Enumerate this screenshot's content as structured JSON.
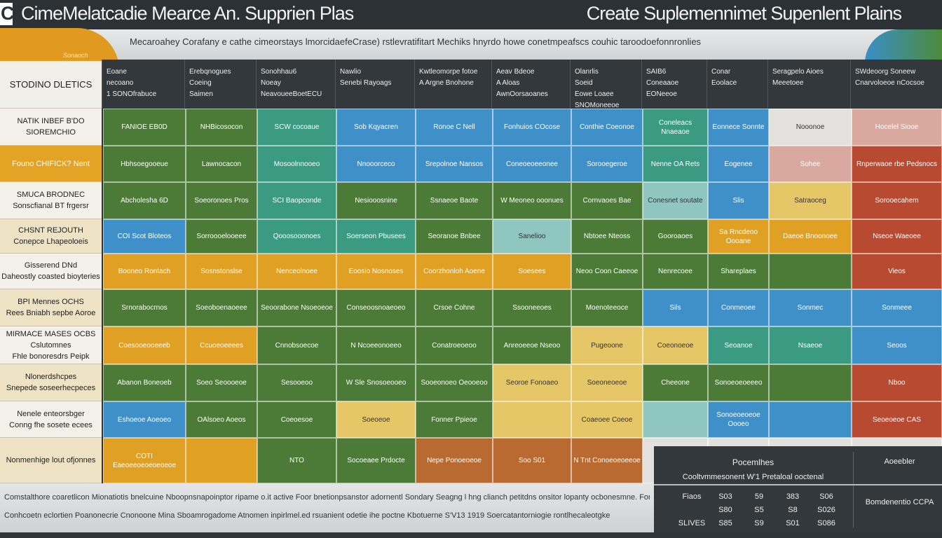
{
  "title": {
    "left_letter": "C",
    "left": "CimeMelatcadie Mearce An. Supprien Plas",
    "right": "Create Suplemennimet Supenlent Plains"
  },
  "banner": {
    "text": "Mecaroahey Corafany e cathe cimeorstays lmorcidaefeCrase) rstlevratifitart Mechiks hnyrdo howe conetmpeafscs couhic taroodoefonnronlies",
    "swoosh_label": "Sonaoch"
  },
  "header": {
    "cells": [
      "Eoane\nnecoano\n1 SONOfrabuce",
      "Erebqnogues\nCoeing\nSaimen",
      "Sonohhau6\nNoeay\nNeavoueeBoetECU",
      "Nawlio\nSenebi Rayoags",
      "Kwtleomorpe fotoe\nA Argne Bnohone",
      "Aeav Bdeoe\nA Aloas\nAwnOorsaoanes",
      "Olanrlis\nSoeid\nEowe Loaee\nSNOMoneeoe",
      "SAIB6\nConeaaoe\nEONeeoe",
      "Conar\nEoolace",
      "Seragpelo Aioes\nMeeetoee",
      "SWdeoorg Soneew\nCnarvoloeoe nCocsoe"
    ]
  },
  "left_column": {
    "header": "STODINO DLETICS",
    "rows": [
      "NATIK INBEF B'DO\nSIOREMCHIO",
      "Founo CHIFICK? Nent",
      "SMUCA BRODNEC\nSonscfianal BT frgersr",
      "CHSNT REJOUTH\nConepce Lhapeoloeis",
      "Gisserend DNd\nDaheostly coasted bioyteries",
      "BPI Mennes OCHS\nRees Bniabh sepbe Aoroe",
      "MIRMACE MASES OCBS\nCslutomnes\nFhle bonoresdrs Peipk",
      "Nlonerdshcpes\nSnepede soseerhecpeces",
      "Nenele enteorsbger\nConng fhe sosete ecees",
      "Nonmenhige lout ofjonnes"
    ]
  },
  "grid": {
    "colors": {
      "G": "#4b7b36",
      "T": "#3a9a82",
      "B": "#3f8fc9",
      "O": "#dfa024",
      "Y": "#e6c768",
      "R": "#b84a31",
      "N": "#b96a31",
      "L": "#8fc6c0",
      "P": "#d9a9a0",
      "K": "#e3e1dd"
    },
    "rows": [
      {
        "colors": [
          "G",
          "G",
          "T",
          "B",
          "B",
          "B",
          "B",
          "T",
          "B",
          "K",
          "P"
        ],
        "texts": [
          "FANIOE EB0D",
          "NHBicosocon",
          "SCW cocoaue",
          "Sob Kqyacren",
          "Ronoe C Nell",
          "Fonhuios COcose",
          "Conthie Coeonoe",
          "Coneleacs Nnaeaoe",
          "Eonnece Sonnte",
          "Nooonoe",
          "Hocelel Siooe"
        ]
      },
      {
        "colors": [
          "G",
          "G",
          "T",
          "B",
          "B",
          "B",
          "B",
          "T",
          "B",
          "P",
          "R"
        ],
        "texts": [
          "Hbhsoegooeue",
          "Lawnocacon",
          "Mosoolnnooeo",
          "Nnooorceco",
          "Srepolnoe Nansos",
          "Coneoeoeeonee",
          "Sorooegeroe",
          "Nenne OA Rets",
          "Eogenee",
          "Sohee",
          "Rnperwaoe rbe Pedsnocs"
        ]
      },
      {
        "colors": [
          "G",
          "G",
          "T",
          "G",
          "G",
          "G",
          "G",
          "L",
          "B",
          "Y",
          "R"
        ],
        "texts": [
          "Abcholesha 6D",
          "Soeoronoes Pros",
          "SCI Baopconde",
          "Nesiooosnine",
          "Ssnaeoe Baote",
          "W Meoneo ooonues",
          "Cornvaoes Bae",
          "Conesnet soutate",
          "Slis",
          "Satraoceg",
          "Sorooecahem"
        ]
      },
      {
        "colors": [
          "B",
          "G",
          "T",
          "T",
          "G",
          "L",
          "G",
          "G",
          "O",
          "O",
          "R"
        ],
        "texts": [
          "COI Scot Bloteos",
          "Sorroooelooeee",
          "Qooosooonoes",
          "Soerseon Pbusees",
          "Seoranoe Bnbee",
          "Sanelioo",
          "Nbtoee Nteoss",
          "Gooroaoes",
          "Sa Rncdeoo Oooane",
          "Daeoe Bnoonoee",
          "Nseoe Waeoee"
        ]
      },
      {
        "colors": [
          "O",
          "O",
          "O",
          "O",
          "O",
          "O",
          "G",
          "G",
          "G",
          "G",
          "R"
        ],
        "texts": [
          "Booneo Rontach",
          "Sosnstonslse",
          "Nenceolnoee",
          "Eoosio Nosnoses",
          "Coorzhonloh Aoene",
          "Soesees",
          "Neoo Coon Caeeoe",
          "Nenrecoee",
          "Shareplaes",
          "",
          "Vieos"
        ]
      },
      {
        "colors": [
          "G",
          "G",
          "G",
          "G",
          "G",
          "G",
          "G",
          "B",
          "B",
          "B",
          "B"
        ],
        "texts": [
          "Srnorabocrnos",
          "Soeoboenaoeee",
          "Seoorabone Nsoeoeoe",
          "Conseoosnoaeoeo",
          "Crsoe Cohne",
          "Ssooneeoes",
          "Moenoteeoce",
          "Sils",
          "Conmeoee",
          "Sonmec",
          "Sonmeee"
        ]
      },
      {
        "colors": [
          "O",
          "O",
          "G",
          "G",
          "G",
          "G",
          "Y",
          "Y",
          "T",
          "T",
          "B"
        ],
        "texts": [
          "Coesooeooeeeb",
          "Ccuoeoeeees",
          "Cnnobsoecoe",
          "N Ncoeeonoeeo",
          "Conatroeoeoo",
          "Anreoeeoe Nseoo",
          "Pugeoone",
          "Coeonoeoe",
          "Seoanoe",
          "Nsaeoe",
          "Seoos"
        ]
      },
      {
        "colors": [
          "G",
          "G",
          "G",
          "G",
          "G",
          "Y",
          "Y",
          "G",
          "G",
          "G",
          "R"
        ],
        "texts": [
          "Abanon Boneoeb",
          "Soeo Seoooeoe",
          "Sesooeoo",
          "W Sle Snosoeooeo",
          "Sooeonoeo Oeooeoo",
          "Seoroe Fonoaeo",
          "Soeoneoeoe",
          "Cheeone",
          "Sonoeoeoeeeo",
          "",
          "Nboo"
        ]
      },
      {
        "colors": [
          "B",
          "G",
          "G",
          "Y",
          "G",
          "Y",
          "Y",
          "L",
          "B",
          "B",
          "R"
        ],
        "texts": [
          "Eshoeoe Aoeoeo",
          "OAlsoeo Aoeos",
          "Coeoesoe",
          "Soeoeoe",
          "Fonner Ppieoe",
          "",
          "Coaeoee Coeoe",
          "",
          "Sonoeoeoeoe Oooeo",
          "",
          "Seoeoeoe CAS"
        ]
      },
      {
        "colors": [
          "O",
          "O",
          "G",
          "G",
          "N",
          "N",
          "N",
          "K",
          "K",
          "K",
          "K"
        ],
        "texts": [
          "COTI Eaeoeeoeoeoeoeoe",
          "",
          "NTO",
          "Socoeaee Prdocte",
          "Nepe Ponoeoeoe",
          "Soo  S01",
          "N Tnt Conoeoeoeeoe",
          "",
          "",
          "",
          ""
        ]
      }
    ]
  },
  "footer": {
    "line1": "Comstalthore coaretlicon Mionatiotis bnelcuine Nboopnsnapoinptor ripame o.it active Foor bnetionpsanstor adornentl Sondary Seagng l hng clianch petitdns onsitor lopanty ocbonesmne. Fongendhe Creaore",
    "line2": "Conhcoetn eclortien Poanonecrie Cnonoone Mina Sboamrogadome Atnomen inpirlmel.ed rsuanient odetie ihe poctne Kbotuerne S'V13 1919 Soercatantorniogie rontlhecaleotgke"
  },
  "panel": {
    "title": "Pocemlhes",
    "subtitle": "Cooltvmmesonent W'1 Pretaloal ooctenal",
    "right_title": "Aoeebler",
    "right_value": "Bomdenentio CCPA",
    "rows": [
      [
        "Fiaos",
        "S03",
        "59",
        "383",
        "S06"
      ],
      [
        "",
        "S80",
        "S5",
        "S8",
        "S026"
      ],
      [
        "SLIVES",
        "S85",
        "S9",
        "S01",
        "S086"
      ]
    ]
  }
}
